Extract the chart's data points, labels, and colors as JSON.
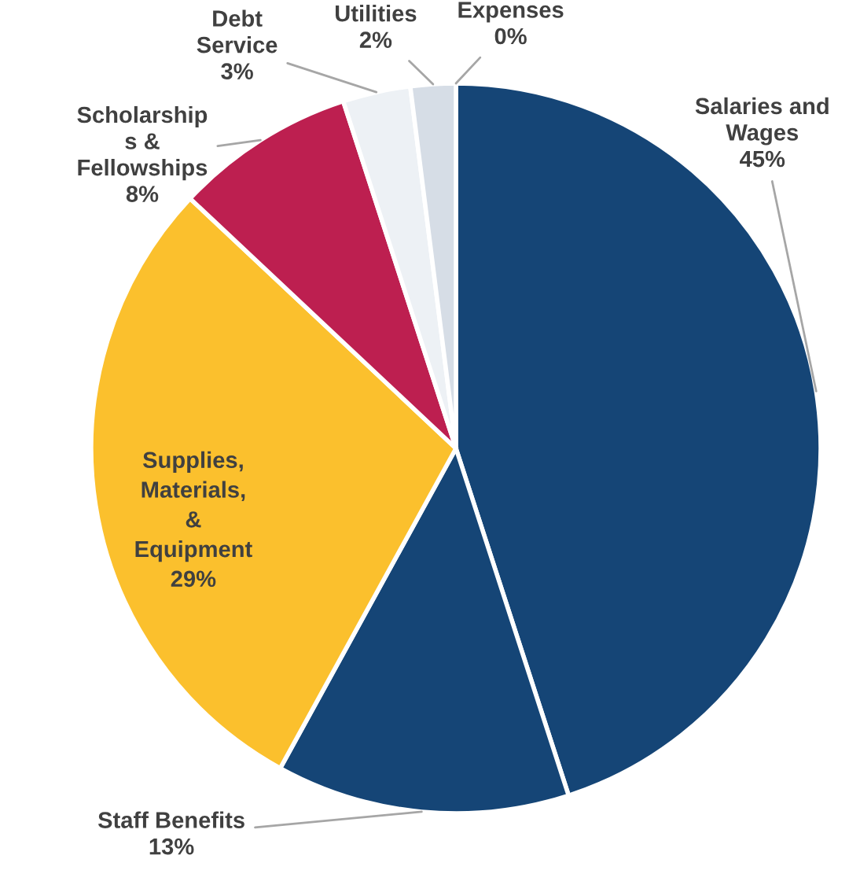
{
  "chart_data": {
    "type": "pie",
    "categories": [
      "Salaries and\nWages",
      "Staff Benefits",
      "Supplies,\nMaterials,\n&\nEquipment",
      "Scholarship\ns &\nFellowships",
      "Debt\nService",
      "Utilities",
      "Expenses"
    ],
    "values": [
      45,
      13,
      29,
      8,
      3,
      2,
      0
    ],
    "value_labels": [
      "45%",
      "13%",
      "29%",
      "8%",
      "3%",
      "2%",
      "0%"
    ],
    "colors": [
      "#154576",
      "#154576",
      "#fbc02d",
      "#bd1f50",
      "#edf1f5",
      "#d6dde6",
      "#c9d1db"
    ]
  }
}
